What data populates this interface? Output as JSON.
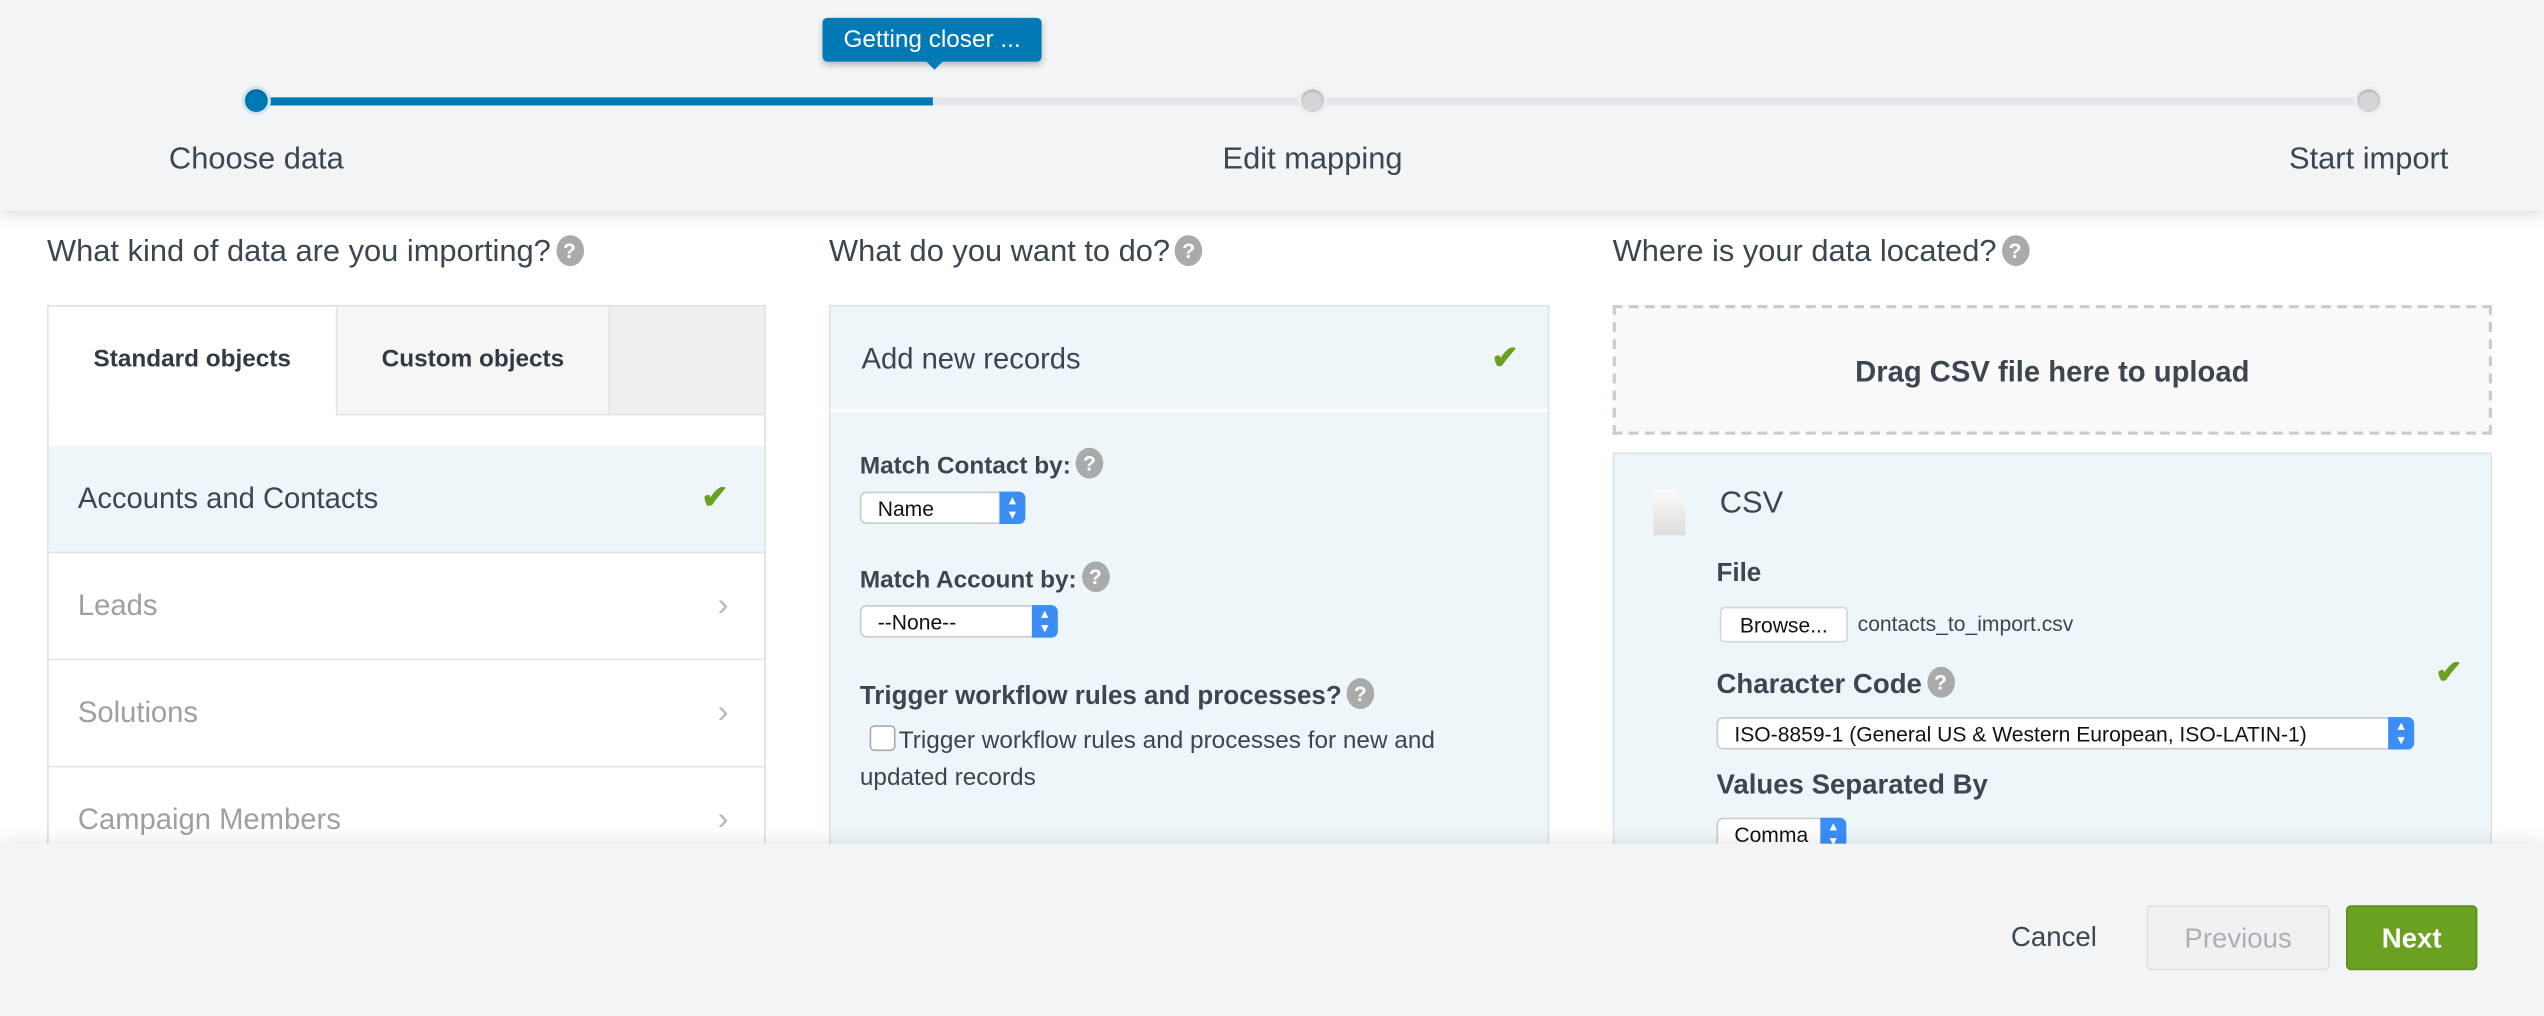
{
  "progress": {
    "tooltip": "Getting closer ...",
    "percent": 32,
    "steps": [
      {
        "label": "Choose data",
        "state": "done"
      },
      {
        "label": "Edit mapping",
        "state": "pending"
      },
      {
        "label": "Start import",
        "state": "pending"
      }
    ]
  },
  "col1": {
    "heading": "What kind of data are you importing?",
    "tabs": [
      {
        "label": "Standard objects",
        "active": true
      },
      {
        "label": "Custom objects",
        "active": false
      }
    ],
    "items": [
      {
        "label": "Accounts and Contacts",
        "selected": true
      },
      {
        "label": "Leads"
      },
      {
        "label": "Solutions"
      },
      {
        "label": "Campaign Members"
      }
    ]
  },
  "col2": {
    "heading": "What do you want to do?",
    "action": "Add new records",
    "match_contact_label": "Match Contact by:",
    "match_contact_value": "Name",
    "match_account_label": "Match Account by:",
    "match_account_value": "--None--",
    "trigger_label": "Trigger workflow rules and processes?",
    "trigger_checkbox_label": "Trigger workflow rules and processes for new and updated records",
    "trigger_checked": false
  },
  "col3": {
    "heading": "Where is your data located?",
    "drop_text": "Drag CSV file here to upload",
    "source": "CSV",
    "file_label": "File",
    "browse_label": "Browse...",
    "file_name": "contacts_to_import.csv",
    "charcode_label": "Character Code",
    "charcode_value": "ISO-8859-1 (General US & Western European, ISO-LATIN-1)",
    "separator_label": "Values Separated By",
    "separator_value": "Comma"
  },
  "footer": {
    "cancel": "Cancel",
    "previous": "Previous",
    "next": "Next"
  },
  "colors": {
    "accent": "#0079b5",
    "success": "#6aa121"
  }
}
